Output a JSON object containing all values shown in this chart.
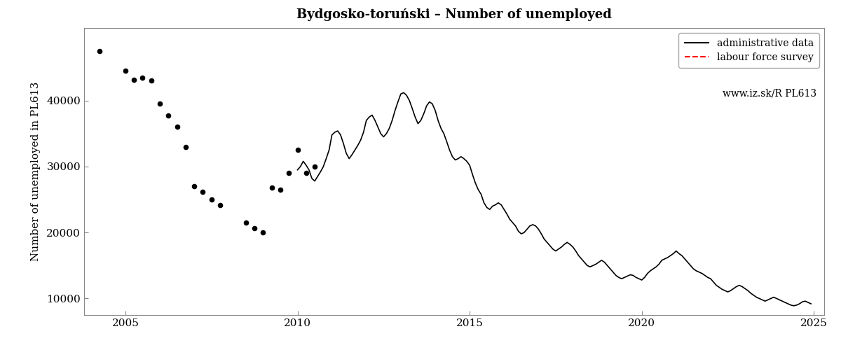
{
  "title": "Bydgosko-toruński – Number of unemployed",
  "ylabel": "Number of unemployed in PL613",
  "xlabel": "",
  "xlim": [
    2003.8,
    2025.3
  ],
  "ylim": [
    7500,
    51000
  ],
  "yticks": [
    10000,
    20000,
    30000,
    40000
  ],
  "ytick_labels": [
    "10000",
    "20000",
    "30000",
    "40000"
  ],
  "xticks": [
    2005,
    2010,
    2015,
    2020,
    2025
  ],
  "legend_line1": "administrative data",
  "legend_line2": "labour force survey",
  "legend_line3": "www.iz.sk/R PL613",
  "background_color": "#ffffff",
  "lfs_dots": [
    [
      2004.25,
      47500
    ],
    [
      2005.0,
      44500
    ],
    [
      2005.25,
      43200
    ],
    [
      2005.5,
      43500
    ],
    [
      2005.75,
      43000
    ],
    [
      2006.0,
      39500
    ],
    [
      2006.25,
      37700
    ],
    [
      2006.5,
      36000
    ],
    [
      2006.75,
      33000
    ],
    [
      2007.0,
      27000
    ],
    [
      2007.25,
      26200
    ],
    [
      2007.5,
      25000
    ],
    [
      2007.75,
      24200
    ],
    [
      2008.5,
      21500
    ],
    [
      2008.75,
      20700
    ],
    [
      2009.0,
      20000
    ],
    [
      2009.25,
      26800
    ],
    [
      2009.5,
      26500
    ],
    [
      2009.75,
      29000
    ],
    [
      2010.0,
      32500
    ],
    [
      2010.25,
      29000
    ],
    [
      2010.5,
      30000
    ]
  ],
  "admin_data": [
    [
      2010.0,
      29500
    ],
    [
      2010.083,
      30000
    ],
    [
      2010.167,
      30800
    ],
    [
      2010.25,
      30200
    ],
    [
      2010.333,
      29500
    ],
    [
      2010.417,
      28200
    ],
    [
      2010.5,
      27800
    ],
    [
      2010.583,
      28500
    ],
    [
      2010.667,
      29200
    ],
    [
      2010.75,
      30000
    ],
    [
      2010.833,
      31200
    ],
    [
      2010.917,
      32500
    ],
    [
      2011.0,
      34800
    ],
    [
      2011.083,
      35200
    ],
    [
      2011.167,
      35400
    ],
    [
      2011.25,
      34800
    ],
    [
      2011.333,
      33500
    ],
    [
      2011.417,
      32000
    ],
    [
      2011.5,
      31200
    ],
    [
      2011.583,
      31800
    ],
    [
      2011.667,
      32500
    ],
    [
      2011.75,
      33200
    ],
    [
      2011.833,
      34000
    ],
    [
      2011.917,
      35200
    ],
    [
      2012.0,
      37000
    ],
    [
      2012.083,
      37500
    ],
    [
      2012.167,
      37800
    ],
    [
      2012.25,
      37000
    ],
    [
      2012.333,
      36000
    ],
    [
      2012.417,
      35000
    ],
    [
      2012.5,
      34500
    ],
    [
      2012.583,
      35000
    ],
    [
      2012.667,
      35800
    ],
    [
      2012.75,
      37000
    ],
    [
      2012.833,
      38500
    ],
    [
      2012.917,
      39800
    ],
    [
      2013.0,
      41000
    ],
    [
      2013.083,
      41200
    ],
    [
      2013.167,
      40800
    ],
    [
      2013.25,
      40000
    ],
    [
      2013.333,
      38800
    ],
    [
      2013.417,
      37500
    ],
    [
      2013.5,
      36500
    ],
    [
      2013.583,
      37000
    ],
    [
      2013.667,
      38000
    ],
    [
      2013.75,
      39200
    ],
    [
      2013.833,
      39800
    ],
    [
      2013.917,
      39500
    ],
    [
      2014.0,
      38500
    ],
    [
      2014.083,
      37000
    ],
    [
      2014.167,
      35800
    ],
    [
      2014.25,
      35000
    ],
    [
      2014.333,
      33800
    ],
    [
      2014.417,
      32500
    ],
    [
      2014.5,
      31500
    ],
    [
      2014.583,
      31000
    ],
    [
      2014.667,
      31200
    ],
    [
      2014.75,
      31500
    ],
    [
      2014.833,
      31200
    ],
    [
      2014.917,
      30800
    ],
    [
      2015.0,
      30200
    ],
    [
      2015.083,
      28800
    ],
    [
      2015.167,
      27500
    ],
    [
      2015.25,
      26500
    ],
    [
      2015.333,
      25800
    ],
    [
      2015.417,
      24500
    ],
    [
      2015.5,
      23800
    ],
    [
      2015.583,
      23500
    ],
    [
      2015.667,
      24000
    ],
    [
      2015.75,
      24200
    ],
    [
      2015.833,
      24500
    ],
    [
      2015.917,
      24200
    ],
    [
      2016.0,
      23500
    ],
    [
      2016.083,
      22800
    ],
    [
      2016.167,
      22000
    ],
    [
      2016.25,
      21500
    ],
    [
      2016.333,
      21000
    ],
    [
      2016.417,
      20200
    ],
    [
      2016.5,
      19800
    ],
    [
      2016.583,
      20000
    ],
    [
      2016.667,
      20500
    ],
    [
      2016.75,
      21000
    ],
    [
      2016.833,
      21200
    ],
    [
      2016.917,
      21000
    ],
    [
      2017.0,
      20500
    ],
    [
      2017.083,
      19800
    ],
    [
      2017.167,
      19000
    ],
    [
      2017.25,
      18500
    ],
    [
      2017.333,
      18000
    ],
    [
      2017.417,
      17500
    ],
    [
      2017.5,
      17200
    ],
    [
      2017.583,
      17500
    ],
    [
      2017.667,
      17800
    ],
    [
      2017.75,
      18200
    ],
    [
      2017.833,
      18500
    ],
    [
      2017.917,
      18200
    ],
    [
      2018.0,
      17800
    ],
    [
      2018.083,
      17200
    ],
    [
      2018.167,
      16500
    ],
    [
      2018.25,
      16000
    ],
    [
      2018.333,
      15500
    ],
    [
      2018.417,
      15000
    ],
    [
      2018.5,
      14800
    ],
    [
      2018.583,
      15000
    ],
    [
      2018.667,
      15200
    ],
    [
      2018.75,
      15500
    ],
    [
      2018.833,
      15800
    ],
    [
      2018.917,
      15500
    ],
    [
      2019.0,
      15000
    ],
    [
      2019.083,
      14500
    ],
    [
      2019.167,
      14000
    ],
    [
      2019.25,
      13500
    ],
    [
      2019.333,
      13200
    ],
    [
      2019.417,
      13000
    ],
    [
      2019.5,
      13200
    ],
    [
      2019.583,
      13400
    ],
    [
      2019.667,
      13600
    ],
    [
      2019.75,
      13500
    ],
    [
      2019.833,
      13200
    ],
    [
      2019.917,
      13000
    ],
    [
      2020.0,
      12800
    ],
    [
      2020.083,
      13200
    ],
    [
      2020.167,
      13800
    ],
    [
      2020.25,
      14200
    ],
    [
      2020.333,
      14500
    ],
    [
      2020.417,
      14800
    ],
    [
      2020.5,
      15200
    ],
    [
      2020.583,
      15800
    ],
    [
      2020.667,
      16000
    ],
    [
      2020.75,
      16200
    ],
    [
      2020.833,
      16500
    ],
    [
      2020.917,
      16800
    ],
    [
      2021.0,
      17200
    ],
    [
      2021.083,
      16800
    ],
    [
      2021.167,
      16500
    ],
    [
      2021.25,
      16000
    ],
    [
      2021.333,
      15500
    ],
    [
      2021.417,
      15000
    ],
    [
      2021.5,
      14500
    ],
    [
      2021.583,
      14200
    ],
    [
      2021.667,
      14000
    ],
    [
      2021.75,
      13800
    ],
    [
      2021.833,
      13500
    ],
    [
      2021.917,
      13200
    ],
    [
      2022.0,
      13000
    ],
    [
      2022.083,
      12500
    ],
    [
      2022.167,
      12000
    ],
    [
      2022.25,
      11700
    ],
    [
      2022.333,
      11400
    ],
    [
      2022.417,
      11200
    ],
    [
      2022.5,
      11000
    ],
    [
      2022.583,
      11200
    ],
    [
      2022.667,
      11500
    ],
    [
      2022.75,
      11800
    ],
    [
      2022.833,
      12000
    ],
    [
      2022.917,
      11800
    ],
    [
      2023.0,
      11500
    ],
    [
      2023.083,
      11200
    ],
    [
      2023.167,
      10800
    ],
    [
      2023.25,
      10500
    ],
    [
      2023.333,
      10200
    ],
    [
      2023.417,
      10000
    ],
    [
      2023.5,
      9800
    ],
    [
      2023.583,
      9600
    ],
    [
      2023.667,
      9800
    ],
    [
      2023.75,
      10000
    ],
    [
      2023.833,
      10200
    ],
    [
      2023.917,
      10000
    ],
    [
      2024.0,
      9800
    ],
    [
      2024.083,
      9600
    ],
    [
      2024.167,
      9400
    ],
    [
      2024.25,
      9200
    ],
    [
      2024.333,
      9000
    ],
    [
      2024.417,
      8900
    ],
    [
      2024.5,
      9000
    ],
    [
      2024.583,
      9200
    ],
    [
      2024.667,
      9500
    ],
    [
      2024.75,
      9600
    ],
    [
      2024.833,
      9400
    ],
    [
      2024.917,
      9200
    ]
  ]
}
